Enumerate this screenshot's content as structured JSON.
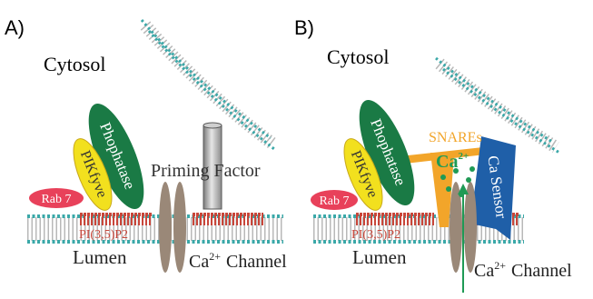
{
  "panels": [
    {
      "letter": "A)",
      "cytosol": "Cytosol",
      "phosphatase": "Phophatase",
      "pikfyve": "PIKfyve",
      "rab7": "Rab 7",
      "pip2": "PI(3,5)P2",
      "lumen": "Lumen",
      "priming": "Priming Factor",
      "ca": "Ca",
      "ca_sup": "2+",
      "channel": "Channel"
    },
    {
      "letter": "B)",
      "cytosol": "Cytosol",
      "phosphatase": "Phophatase",
      "pikfyve": "PIKfyve",
      "rab7": "Rab 7",
      "pip2": "PI(3,5)P2",
      "lumen": "Lumen",
      "snares": "SNAREs",
      "ca_ion": "Ca",
      "ca_ion_sup": "2+",
      "ca_sensor": "Ca Sensor",
      "ca": "Ca",
      "ca_sup": "2+",
      "channel": "Channel"
    }
  ],
  "colors": {
    "head_teal": "#3aa8a8",
    "tail": "#b8b8b8",
    "pip2_red": "#c8463a",
    "rab7": "#e8415a",
    "pikfyve": "#f2e01e",
    "phosphatase": "#1a7a45",
    "channel": "#9a8878",
    "snare": "#f2a52a",
    "sensor": "#1f5fa8",
    "ion_green": "#1f9a55"
  }
}
